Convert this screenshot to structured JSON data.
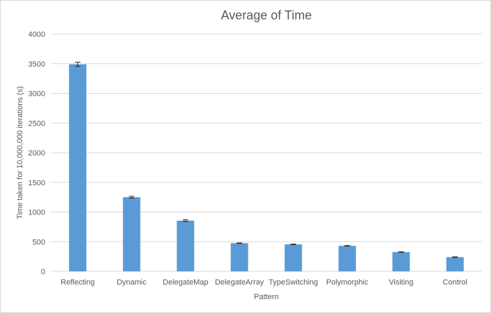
{
  "chart_data": {
    "type": "bar",
    "title": "Average of Time",
    "xlabel": "Pattern",
    "ylabel": "Time taken for 10,000,000 iterations (s)",
    "categories": [
      "Reflecting",
      "Dynamic",
      "DelegateMap",
      "DelegateArray",
      "TypeSwitching",
      "Polymorphic",
      "Visiting",
      "Control"
    ],
    "values": [
      3490,
      1250,
      855,
      475,
      455,
      430,
      325,
      240
    ],
    "errors": [
      35,
      15,
      15,
      5,
      5,
      5,
      5,
      5
    ],
    "ylim": [
      0,
      4000
    ],
    "yticks": [
      0,
      500,
      1000,
      1500,
      2000,
      2500,
      3000,
      3500,
      4000
    ],
    "grid": true,
    "legend": "none",
    "bar_color": "#5b9bd5",
    "grid_color": "#d9d9d9",
    "text_color": "#595959"
  }
}
